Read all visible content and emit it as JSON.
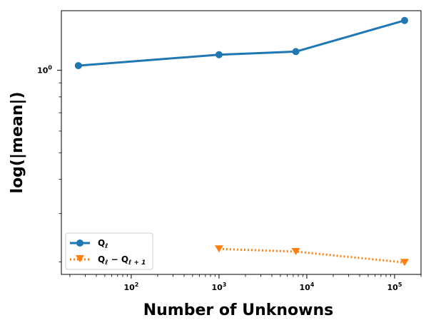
{
  "chart_data": {
    "type": "line",
    "xlabel": "Number of Unknowns",
    "ylabel": "log(|mean|)",
    "x_scale": "log",
    "y_scale": "log",
    "xlim": [
      16,
      200000
    ],
    "ylim": [
      0.18,
      1.65
    ],
    "x_tick_labels": [
      {
        "base": "10",
        "exp": "2",
        "value": 100
      },
      {
        "base": "10",
        "exp": "3",
        "value": 1000
      },
      {
        "base": "10",
        "exp": "4",
        "value": 10000
      },
      {
        "base": "10",
        "exp": "5",
        "value": 100000
      }
    ],
    "y_tick_labels": [
      {
        "base": "10",
        "exp": "0",
        "value": 1
      }
    ],
    "grid": false,
    "legend_position": "lower-left",
    "series": [
      {
        "name": "Q_ℓ",
        "legend_main": "Q",
        "legend_sub": "ℓ",
        "color": "#1f77b4",
        "linestyle": "solid",
        "marker": "circle",
        "x": [
          25,
          1000,
          7500,
          130000
        ],
        "y": [
          1.04,
          1.14,
          1.17,
          1.52
        ]
      },
      {
        "name": "Q_ℓ − Q_ℓ+1",
        "legend_main": "Q",
        "legend_sub": "ℓ",
        "legend_op": " − Q",
        "legend_sub2": "ℓ + 1",
        "color": "#ff7f0e",
        "linestyle": "dotted",
        "marker": "triangle-down",
        "x": [
          1000,
          7500,
          130000
        ],
        "y": [
          0.223,
          0.218,
          0.199
        ]
      }
    ]
  }
}
